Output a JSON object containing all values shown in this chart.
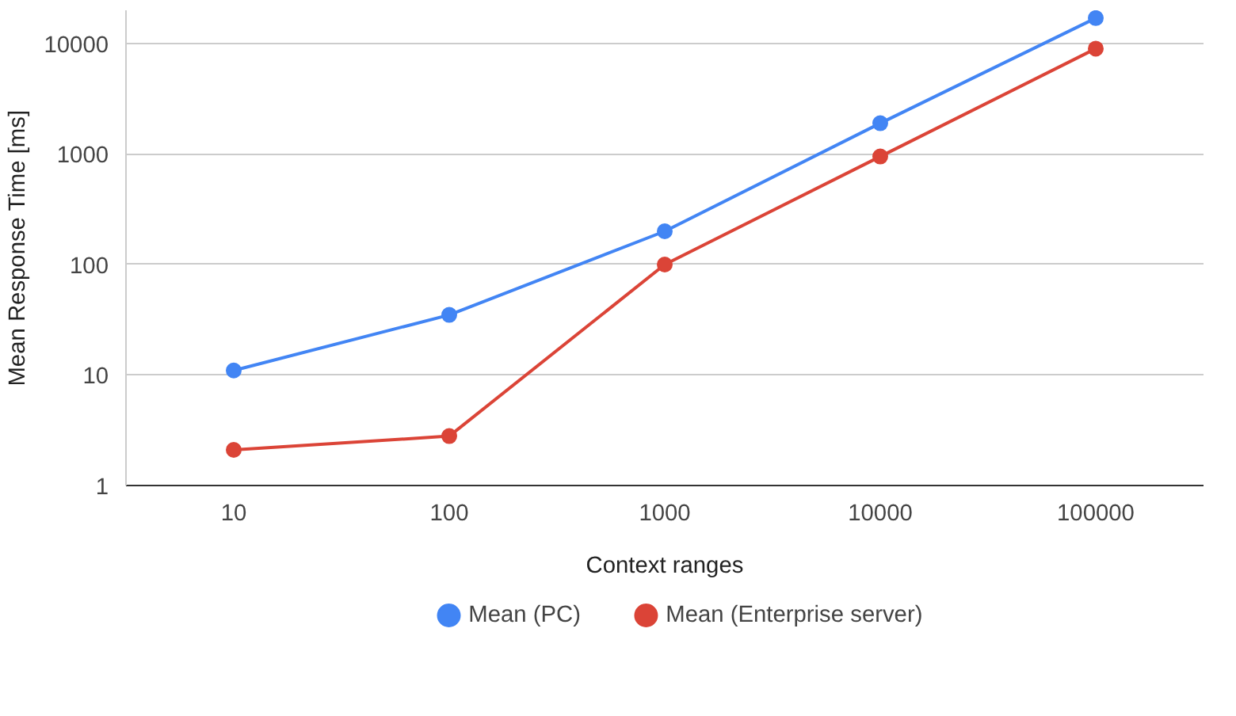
{
  "chart_data": {
    "type": "line",
    "xlabel": "Context ranges",
    "ylabel": "Mean Response Time [ms]",
    "categories": [
      "10",
      "100",
      "1000",
      "10000",
      "100000"
    ],
    "series": [
      {
        "name": "Mean (PC)",
        "color": "#4285f4",
        "values": [
          11,
          35,
          200,
          1900,
          17000
        ]
      },
      {
        "name": "Mean (Enterprise server)",
        "color": "#db4437",
        "values": [
          2.1,
          2.8,
          100,
          950,
          9000
        ]
      }
    ],
    "log": "y",
    "ylim": [
      1,
      20000
    ],
    "yticks": [
      1,
      10,
      100,
      1000,
      10000
    ],
    "grid": "y",
    "legend": "bottom",
    "marker": "circle",
    "line_style": "solid"
  }
}
